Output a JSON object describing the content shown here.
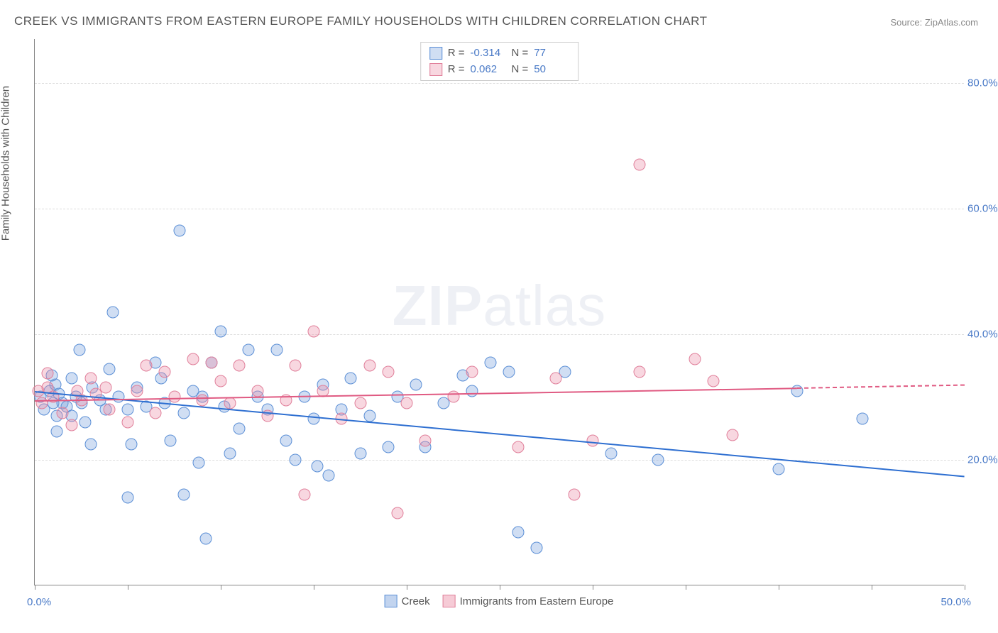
{
  "title": "CREEK VS IMMIGRANTS FROM EASTERN EUROPE FAMILY HOUSEHOLDS WITH CHILDREN CORRELATION CHART",
  "source": "Source: ZipAtlas.com",
  "watermark_bold": "ZIP",
  "watermark_light": "atlas",
  "chart": {
    "type": "scatter",
    "background_color": "#ffffff",
    "grid_color": "#dddddd",
    "axis_color": "#888888",
    "xlim": [
      0,
      50
    ],
    "ylim": [
      0,
      87
    ],
    "x_tick_positions": [
      0,
      5,
      10,
      15,
      20,
      25,
      30,
      35,
      40,
      45,
      50
    ],
    "x_left_label": "0.0%",
    "x_right_label": "50.0%",
    "y_gridlines": [
      20,
      40,
      60,
      80
    ],
    "y_labels": [
      "20.0%",
      "40.0%",
      "60.0%",
      "80.0%"
    ],
    "y_axis_title": "Family Households with Children",
    "y_label_color": "#4a7ac7",
    "y_label_fontsize": 15,
    "marker_radius": 8.5,
    "marker_border_width": 1.2,
    "series": [
      {
        "name": "Creek",
        "fill": "rgba(120,160,220,0.35)",
        "stroke": "#5b8fd6",
        "line_color": "#2e6fd1",
        "R": "-0.314",
        "N": "77",
        "trend": {
          "x1": 0,
          "y1": 31,
          "x2": 50,
          "y2": 17.5
        },
        "points": [
          [
            0.3,
            30
          ],
          [
            0.5,
            28
          ],
          [
            0.8,
            31
          ],
          [
            1.0,
            29
          ],
          [
            1.1,
            32
          ],
          [
            1.2,
            27
          ],
          [
            1.3,
            30.5
          ],
          [
            1.5,
            29
          ],
          [
            1.2,
            24.5
          ],
          [
            1.7,
            28.5
          ],
          [
            2.0,
            27
          ],
          [
            2.2,
            30
          ],
          [
            2.0,
            33
          ],
          [
            2.4,
            37.5
          ],
          [
            2.5,
            29
          ],
          [
            2.7,
            26
          ],
          [
            3.0,
            22.5
          ],
          [
            3.1,
            31.5
          ],
          [
            0.9,
            33.5
          ],
          [
            3.5,
            29.5
          ],
          [
            3.8,
            28
          ],
          [
            4.0,
            34.5
          ],
          [
            4.2,
            43.5
          ],
          [
            4.5,
            30
          ],
          [
            5.0,
            28
          ],
          [
            5.0,
            14
          ],
          [
            5.2,
            22.5
          ],
          [
            5.5,
            31.5
          ],
          [
            6.0,
            28.5
          ],
          [
            6.5,
            35.5
          ],
          [
            6.8,
            33
          ],
          [
            7.0,
            29
          ],
          [
            7.3,
            23
          ],
          [
            7.8,
            56.5
          ],
          [
            8.0,
            27.5
          ],
          [
            8.0,
            14.5
          ],
          [
            8.5,
            31
          ],
          [
            8.8,
            19.5
          ],
          [
            9.0,
            30
          ],
          [
            9.5,
            35.5
          ],
          [
            10.0,
            40.5
          ],
          [
            10.2,
            28.5
          ],
          [
            10.5,
            21
          ],
          [
            11.0,
            25
          ],
          [
            9.2,
            7.5
          ],
          [
            11.5,
            37.5
          ],
          [
            12.0,
            30
          ],
          [
            12.5,
            28
          ],
          [
            13.0,
            37.5
          ],
          [
            13.5,
            23
          ],
          [
            14.0,
            20
          ],
          [
            14.5,
            30
          ],
          [
            15.0,
            26.5
          ],
          [
            15.2,
            19
          ],
          [
            15.5,
            32
          ],
          [
            15.8,
            17.5
          ],
          [
            16.5,
            28
          ],
          [
            17.0,
            33
          ],
          [
            17.5,
            21
          ],
          [
            18.0,
            27
          ],
          [
            19.0,
            22
          ],
          [
            19.5,
            30
          ],
          [
            20.5,
            32
          ],
          [
            21.0,
            22
          ],
          [
            22.0,
            29
          ],
          [
            23.0,
            33.5
          ],
          [
            23.5,
            31
          ],
          [
            24.5,
            35.5
          ],
          [
            25.5,
            34
          ],
          [
            26.0,
            8.5
          ],
          [
            27.0,
            6
          ],
          [
            28.5,
            34
          ],
          [
            31.0,
            21
          ],
          [
            33.5,
            20
          ],
          [
            40.0,
            18.5
          ],
          [
            41.0,
            31
          ],
          [
            44.5,
            26.5
          ]
        ]
      },
      {
        "name": "Immigrants from Eastern Europe",
        "fill": "rgba(235,140,165,0.35)",
        "stroke": "#e07f9a",
        "line_color": "#e05a82",
        "R": "0.062",
        "N": "50",
        "trend": {
          "x1": 0,
          "y1": 29.5,
          "x2": 41,
          "y2": 31.5
        },
        "trend_dashed": {
          "x1": 41,
          "y1": 31.5,
          "x2": 50,
          "y2": 32
        },
        "points": [
          [
            0.2,
            31
          ],
          [
            0.4,
            29
          ],
          [
            0.7,
            31.5
          ],
          [
            0.7,
            33.8
          ],
          [
            1.0,
            30
          ],
          [
            1.5,
            27.5
          ],
          [
            2.0,
            25.5
          ],
          [
            2.3,
            31
          ],
          [
            2.5,
            29.5
          ],
          [
            3.0,
            33
          ],
          [
            3.3,
            30.5
          ],
          [
            3.8,
            31.5
          ],
          [
            4.0,
            28
          ],
          [
            5.0,
            26
          ],
          [
            5.5,
            31
          ],
          [
            6.0,
            35
          ],
          [
            6.5,
            27.5
          ],
          [
            7.0,
            34
          ],
          [
            7.5,
            30
          ],
          [
            8.5,
            36
          ],
          [
            9.0,
            29.5
          ],
          [
            9.5,
            35.5
          ],
          [
            10.0,
            32.5
          ],
          [
            10.5,
            29
          ],
          [
            11.0,
            35
          ],
          [
            12.0,
            31
          ],
          [
            12.5,
            27
          ],
          [
            13.5,
            29.5
          ],
          [
            14.0,
            35
          ],
          [
            15.0,
            40.5
          ],
          [
            15.5,
            31
          ],
          [
            14.5,
            14.5
          ],
          [
            16.5,
            26.5
          ],
          [
            17.5,
            29
          ],
          [
            18.0,
            35
          ],
          [
            19.0,
            34
          ],
          [
            19.5,
            11.5
          ],
          [
            20.0,
            29
          ],
          [
            21.0,
            23
          ],
          [
            22.5,
            30
          ],
          [
            23.5,
            34
          ],
          [
            26.0,
            22
          ],
          [
            28.0,
            33
          ],
          [
            30.0,
            23
          ],
          [
            29.0,
            14.5
          ],
          [
            32.5,
            67
          ],
          [
            32.5,
            34
          ],
          [
            35.5,
            36
          ],
          [
            36.5,
            32.5
          ],
          [
            37.5,
            24
          ]
        ]
      }
    ],
    "legend_top_labels": {
      "R": "R =",
      "N": "N ="
    },
    "legend_bottom": [
      {
        "label": "Creek",
        "fill": "rgba(120,160,220,0.45)",
        "stroke": "#5b8fd6"
      },
      {
        "label": "Immigrants from Eastern Europe",
        "fill": "rgba(235,140,165,0.45)",
        "stroke": "#e07f9a"
      }
    ]
  }
}
